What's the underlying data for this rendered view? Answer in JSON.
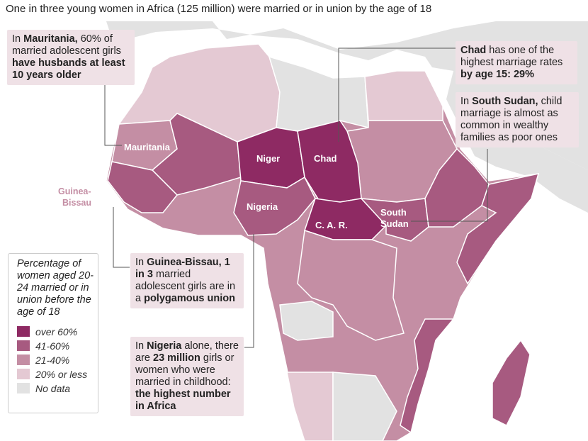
{
  "title": "One in three young women in Africa (125 million) were married or in union by the age of 18",
  "colors": {
    "over60": "#8e2a63",
    "41to60": "#a75a80",
    "21to40": "#c48ea4",
    "under20": "#e4c9d3",
    "nodata": "#e2e2e2",
    "callout_bg": "#efe1e6"
  },
  "map_labels": {
    "mauritania": "Mauritania",
    "niger": "Niger",
    "chad": "Chad",
    "nigeria": "Nigeria",
    "car": "C. A. R.",
    "south_sudan_1": "South",
    "south_sudan_2": "Sudan",
    "guinea_bissau_1": "Guinea-",
    "guinea_bissau_2": "Bissau"
  },
  "callouts": {
    "mauritania": [
      {
        "t": "In "
      },
      {
        "t": "Mauritania,",
        "b": 1
      },
      {
        "t": " 60% of married adolescent girls "
      },
      {
        "t": "have husbands at least 10 years older",
        "b": 1
      }
    ],
    "chad": [
      {
        "t": "Chad",
        "b": 1
      },
      {
        "t": " has one of the highest marriage rates "
      },
      {
        "t": "by age 15: 29%",
        "b": 1
      }
    ],
    "south_sudan": [
      {
        "t": "In "
      },
      {
        "t": "South Sudan,",
        "b": 1
      },
      {
        "t": " child marriage is almost as common in wealthy families as poor ones"
      }
    ],
    "guinea_bissau": [
      {
        "t": "In "
      },
      {
        "t": "Guinea-Bissau, 1 in 3",
        "b": 1
      },
      {
        "t": " married adolescent girls are in a "
      },
      {
        "t": "polygamous union",
        "b": 1
      }
    ],
    "nigeria": [
      {
        "t": "In "
      },
      {
        "t": "Nigeria",
        "b": 1
      },
      {
        "t": " alone, there are "
      },
      {
        "t": "23 million",
        "b": 1
      },
      {
        "t": " girls or women who were married in childhood: "
      },
      {
        "t": "the highest number in Africa",
        "b": 1
      }
    ]
  },
  "legend": {
    "title": "Percentage of women aged 20-24 married or in union before the age of 18",
    "items": [
      {
        "label": "over 60%",
        "color": "#8e2a63"
      },
      {
        "label": "41-60%",
        "color": "#a75a80"
      },
      {
        "label": "21-40%",
        "color": "#c48ea4"
      },
      {
        "label": "20% or less",
        "color": "#e4c9d3"
      },
      {
        "label": "No data",
        "color": "#e2e2e2"
      }
    ]
  }
}
